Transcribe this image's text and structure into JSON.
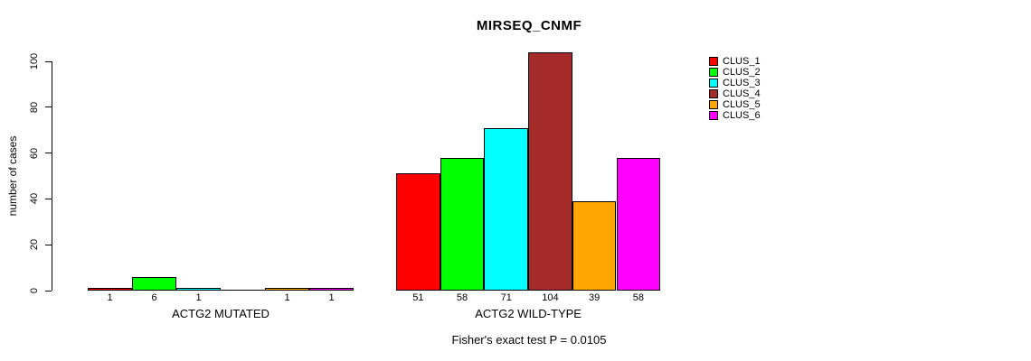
{
  "chart_data": {
    "type": "bar",
    "title": "MIRSEQ_CNMF",
    "ylabel": "number of cases",
    "xlabel": "",
    "ylim": [
      0,
      100
    ],
    "yticks": [
      0,
      20,
      40,
      60,
      80,
      100
    ],
    "grid": false,
    "legend_position": "right-outside",
    "categories": [
      "ACTG2 MUTATED",
      "ACTG2 WILD-TYPE"
    ],
    "groups": [
      {
        "label": "ACTG2 MUTATED",
        "values": [
          1,
          6,
          1,
          0,
          1,
          1
        ]
      },
      {
        "label": "ACTG2 WILD-TYPE",
        "values": [
          51,
          58,
          71,
          104,
          39,
          58
        ]
      }
    ],
    "series": [
      {
        "name": "CLUS_1",
        "color": "#FF0000",
        "values": [
          1,
          51
        ]
      },
      {
        "name": "CLUS_2",
        "color": "#00FF00",
        "values": [
          6,
          58
        ]
      },
      {
        "name": "CLUS_3",
        "color": "#00FFFF",
        "values": [
          1,
          71
        ]
      },
      {
        "name": "CLUS_4",
        "color": "#A52A2A",
        "values": [
          0,
          104
        ]
      },
      {
        "name": "CLUS_5",
        "color": "#FFA500",
        "values": [
          1,
          39
        ]
      },
      {
        "name": "CLUS_6",
        "color": "#FF00FF",
        "values": [
          1,
          58
        ]
      }
    ],
    "bar_value_labels_shown": true,
    "zero_value_label_hidden": true,
    "footer": "Fisher's exact test P = 0.0105"
  }
}
